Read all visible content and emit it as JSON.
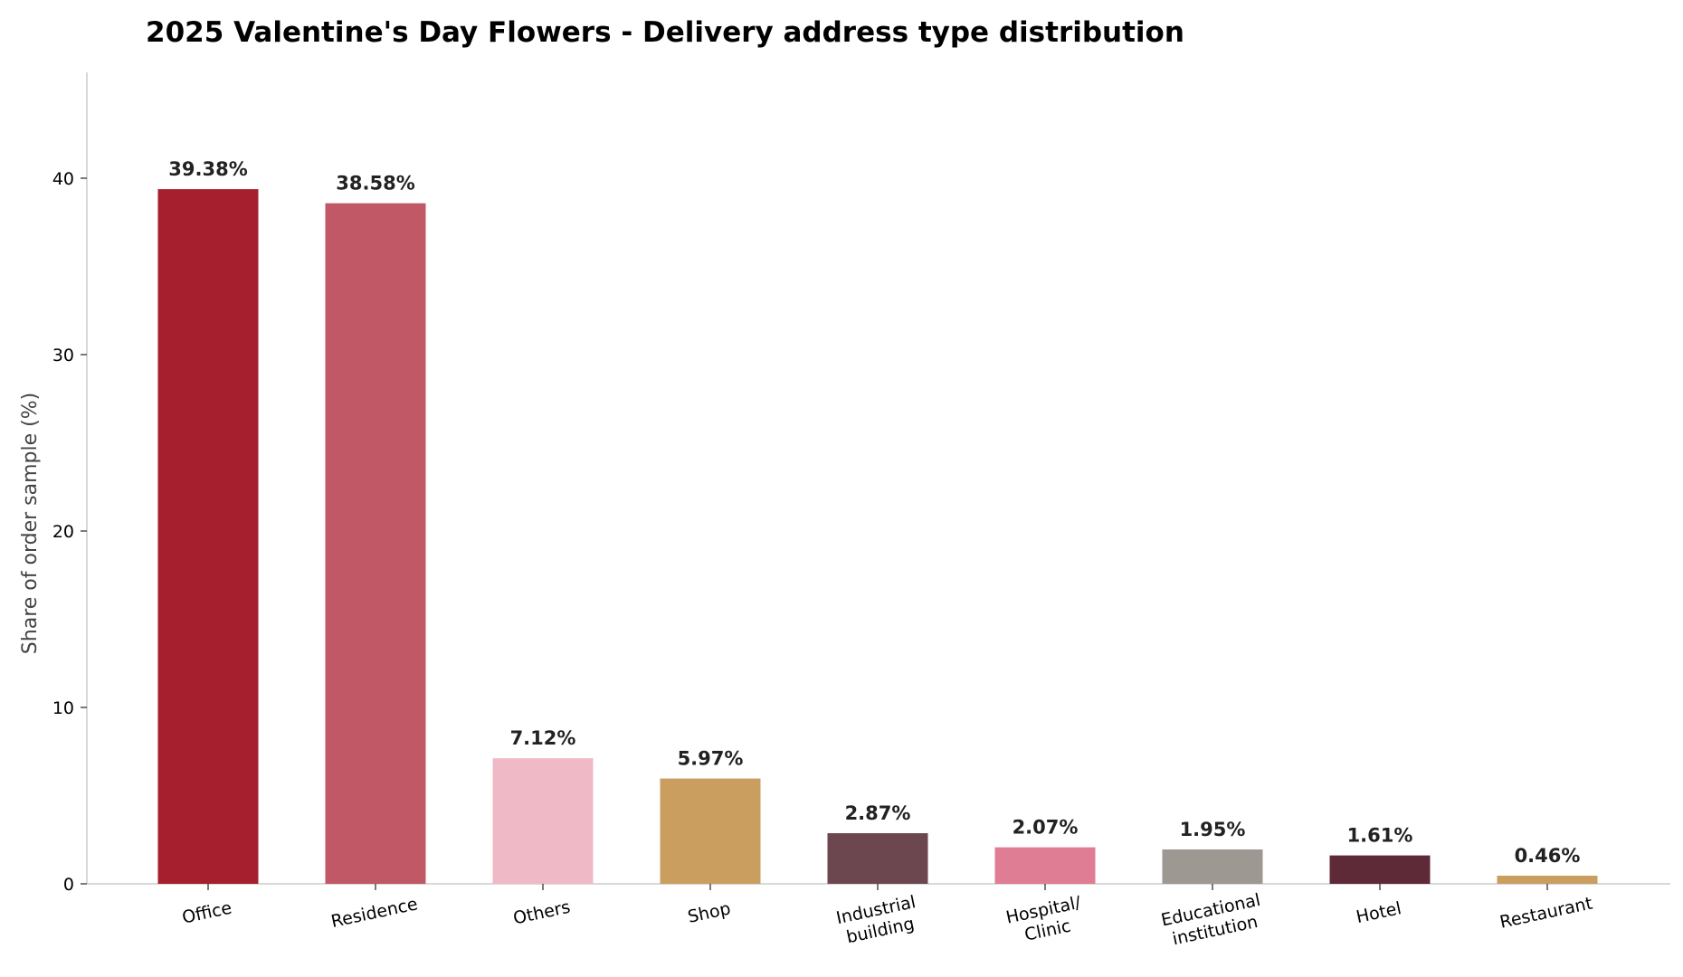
{
  "chart_data": {
    "type": "bar",
    "title": "2025 Valentine's Day Flowers - Delivery address type distribution",
    "xlabel": "",
    "ylabel": "Share of order sample (%)",
    "ylim": [
      0,
      46
    ],
    "yticks": [
      0,
      10,
      20,
      30,
      40
    ],
    "grid": false,
    "legend": "none",
    "categories": [
      [
        "Office"
      ],
      [
        "Residence"
      ],
      [
        "Others"
      ],
      [
        "Shop"
      ],
      [
        "Industrial",
        "building"
      ],
      [
        "Hospital/",
        "Clinic"
      ],
      [
        "Educational",
        "institution"
      ],
      [
        "Hotel"
      ],
      [
        "Restaurant"
      ]
    ],
    "values": [
      39.38,
      38.58,
      7.12,
      5.97,
      2.87,
      2.07,
      1.95,
      1.61,
      0.46
    ],
    "value_labels": [
      "39.38%",
      "38.58%",
      "7.12%",
      "5.97%",
      "2.87%",
      "2.07%",
      "1.95%",
      "1.61%",
      "0.46%"
    ],
    "colors": [
      "#a51f2e",
      "#c05866",
      "#efbac6",
      "#c99e5e",
      "#6d4750",
      "#de7d94",
      "#9e9892",
      "#5e2a38",
      "#c99e5e"
    ]
  }
}
